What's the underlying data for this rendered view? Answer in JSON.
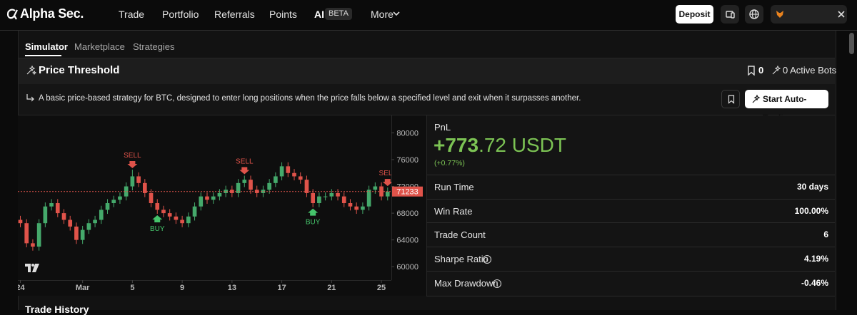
{
  "nav": {
    "logo": "Alpha Sec.",
    "items": [
      "Trade",
      "Portfolio",
      "Referrals",
      "Points"
    ],
    "ai": "AI",
    "beta": "BETA",
    "more": "More",
    "deposit": "Deposit"
  },
  "tabs": [
    "Simulator",
    "Marketplace",
    "Strategies"
  ],
  "strategy": {
    "title": "Price Threshold",
    "bookmarks": "0",
    "active_bots": "0 Active Bots",
    "description": "A basic price-based strategy for BTC, designed to enter long positions when the price falls below a specified level and exit when it surpasses another.",
    "cta": "Start Auto-Trading"
  },
  "chart_data": {
    "type": "candlestick",
    "up_color": "#45a96b",
    "down_color": "#e0534a",
    "x": [
      0,
      0.5,
      1,
      1.5,
      2,
      2.5,
      3,
      3.5,
      4,
      4.5,
      5,
      5.5,
      6,
      6.5,
      7,
      7.5,
      8,
      8.5,
      9,
      9.5,
      10,
      10.5,
      11,
      11.5,
      12,
      12.5,
      13,
      13.5,
      14,
      14.5,
      15,
      15.5,
      16,
      16.5,
      17,
      17.5,
      18,
      18.5,
      19,
      19.5,
      20,
      20.5,
      21,
      21.5,
      22,
      22.5,
      23,
      23.5,
      24,
      24.5,
      25,
      25.5,
      26,
      26.5,
      27,
      27.5,
      28,
      28.5,
      29,
      29.5
    ],
    "open": [
      67000,
      66500,
      63500,
      63000,
      66500,
      69000,
      69500,
      68000,
      67000,
      66000,
      64000,
      65500,
      66500,
      67000,
      68500,
      69500,
      70000,
      70500,
      72000,
      73500,
      72500,
      71000,
      69500,
      68500,
      68000,
      67500,
      67000,
      66500,
      67500,
      69000,
      70500,
      70000,
      70500,
      71000,
      71500,
      71000,
      72500,
      73000,
      71500,
      71000,
      71500,
      72500,
      73500,
      75000,
      74000,
      73500,
      73000,
      71000,
      69500,
      70500,
      70500,
      71000,
      70500,
      69500,
      69000,
      68500,
      69000,
      71500,
      72000,
      70500
    ],
    "high": [
      67600,
      67100,
      64100,
      67100,
      69600,
      70100,
      70100,
      68600,
      67600,
      66600,
      66100,
      67100,
      67600,
      69100,
      70100,
      70600,
      71100,
      72600,
      74500,
      74100,
      73100,
      71600,
      70100,
      69100,
      68600,
      68100,
      67600,
      68100,
      69600,
      71100,
      71100,
      71100,
      71600,
      72100,
      72100,
      73100,
      73600,
      73600,
      72100,
      72100,
      73100,
      74100,
      75600,
      75600,
      74600,
      74100,
      73600,
      71600,
      71100,
      71100,
      71600,
      71600,
      71100,
      70100,
      69600,
      69600,
      72100,
      72600,
      72600,
      71833
    ],
    "low": [
      65900,
      62900,
      62400,
      62400,
      65900,
      68400,
      67400,
      66400,
      65400,
      63400,
      63400,
      64900,
      65900,
      66400,
      67900,
      68900,
      69400,
      69900,
      71400,
      71900,
      70400,
      68900,
      67900,
      67400,
      66900,
      66400,
      65900,
      65900,
      66900,
      68400,
      69400,
      69400,
      69900,
      70400,
      70400,
      70400,
      71900,
      70900,
      70400,
      70400,
      70900,
      71900,
      72900,
      73400,
      72900,
      72400,
      70400,
      68900,
      68900,
      69900,
      69900,
      69900,
      68900,
      68400,
      67900,
      67900,
      68400,
      70900,
      69900,
      69900
    ],
    "close": [
      66500,
      63500,
      63000,
      66500,
      69000,
      69500,
      68000,
      67000,
      66000,
      64000,
      65500,
      66500,
      67000,
      68500,
      69500,
      70000,
      70500,
      72000,
      73500,
      72500,
      71000,
      69500,
      68500,
      68000,
      67500,
      67000,
      66500,
      67500,
      69000,
      70500,
      70000,
      70500,
      71000,
      71500,
      71000,
      72500,
      73000,
      71500,
      71000,
      71500,
      72500,
      73500,
      75000,
      74000,
      73500,
      73000,
      71000,
      69500,
      70500,
      70500,
      71000,
      70500,
      69500,
      69000,
      68500,
      69000,
      71500,
      72000,
      70500,
      71233
    ],
    "xlim": [
      -0.2,
      29.8
    ],
    "xticks": [
      {
        "value": 0,
        "label": "24"
      },
      {
        "value": 5,
        "label": "Mar"
      },
      {
        "value": 9,
        "label": "5"
      },
      {
        "value": 13,
        "label": "9"
      },
      {
        "value": 17,
        "label": "13"
      },
      {
        "value": 21,
        "label": "17"
      },
      {
        "value": 25,
        "label": "21"
      },
      {
        "value": 29,
        "label": "25"
      }
    ],
    "ylim": [
      58000,
      82600
    ],
    "yticks": [
      60000,
      64000,
      68000,
      72000,
      76000,
      80000
    ],
    "price_line": {
      "value": 71233,
      "color": "#e0534a"
    },
    "signals": [
      {
        "label": "SELL",
        "x": 9,
        "price": 74500,
        "color": "#e0534a"
      },
      {
        "label": "BUY",
        "x": 11,
        "price": 67900,
        "color": "#45c46b"
      },
      {
        "label": "SELL",
        "x": 18,
        "price": 73600,
        "color": "#e0534a"
      },
      {
        "label": "BUY",
        "x": 23.5,
        "price": 68900,
        "color": "#45c46b"
      },
      {
        "label": "SELL",
        "x": 29.5,
        "price": 71833,
        "color": "#e0534a"
      }
    ]
  },
  "stats": {
    "pnl_label": "PnL",
    "pnl_main": "+773",
    "pnl_rest": ".72 USDT",
    "pnl_pct": "(+0.77%)",
    "rows": [
      {
        "label": "Run Time",
        "value": "30 days"
      },
      {
        "label": "Win Rate",
        "value": "100.00%"
      },
      {
        "label": "Trade Count",
        "value": "6"
      },
      {
        "label": "Sharpe Ratio",
        "value": "4.19%"
      },
      {
        "label": "Max Drawdown",
        "value": "-0.46%"
      }
    ]
  },
  "section": "Trade History"
}
